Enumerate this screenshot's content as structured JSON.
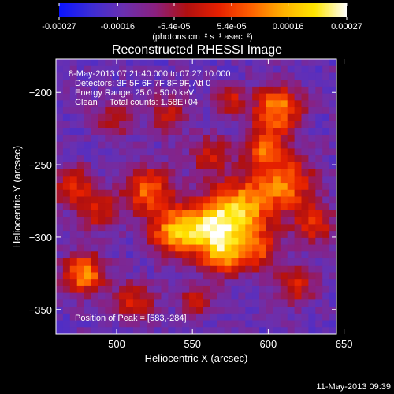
{
  "chart_data": {
    "type": "heatmap",
    "title": "Reconstructed RHESSI Image",
    "xlabel": "Heliocentric X (arcsec)",
    "ylabel": "Heliocentric Y (arcsec)",
    "xlim": [
      460,
      645
    ],
    "ylim": [
      -367,
      -177
    ],
    "x_ticks": [
      500,
      550,
      600,
      650
    ],
    "y_ticks": [
      -200,
      -250,
      -300,
      -350
    ],
    "colorbar": {
      "min": -0.00027,
      "max": 0.00027,
      "tick_values": [
        -0.00027,
        -0.00016,
        -5.4e-05,
        5.4e-05,
        0.00016,
        0.00027
      ],
      "tick_labels": [
        "-0.00027",
        "-0.00016",
        "-5.4e-05",
        "5.4e-05",
        "0.00016",
        "0.00027"
      ],
      "label": "(photons cm⁻² s⁻¹ asec⁻²)"
    },
    "colors": {
      "stops": [
        "#0a14ff",
        "#3c2cd6",
        "#6a30b0",
        "#8a2080",
        "#b01010",
        "#e62000",
        "#ff6000",
        "#ffb000",
        "#ffe600",
        "#ffffff"
      ]
    },
    "annotations": [
      "8-May-2013 07:21:40.000 to 07:27:10.000",
      "Detectors: 3F 5F 6F 7F 8F 9F, Att 0",
      "Energy Range: 25.0 - 50.0 keV",
      "Clean     Total counts: 1.58E+04"
    ],
    "peak_label": "Position of Peak = [583,-284]",
    "peak": [
      583,
      -284
    ],
    "timestamp": "11-May-2013 09:39"
  }
}
